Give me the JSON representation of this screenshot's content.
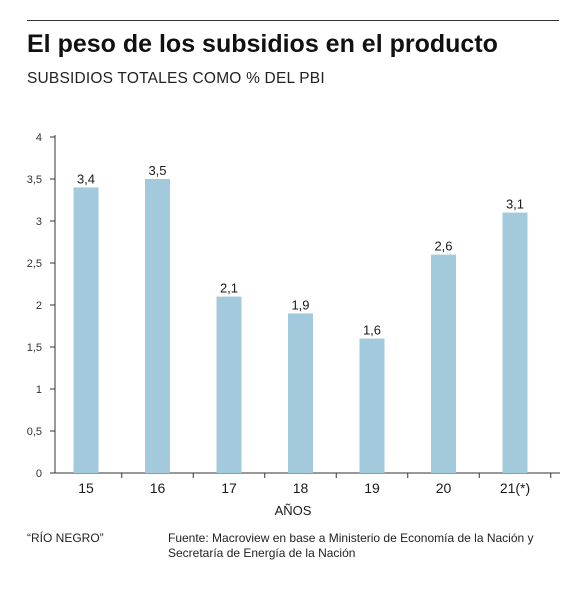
{
  "header": {
    "title": "El peso de los subsidios en el producto",
    "subtitle": "SUBSIDIOS TOTALES COMO % DEL PBI"
  },
  "footer": {
    "publication": "“RÍO NEGRO”",
    "source_line1": "Fuente: Macroview en base a Ministerio de Economía de la Nación y",
    "source_line2": "Secretaría de Energía de la Nación"
  },
  "colors": {
    "bar": "#a3c9dd",
    "axis": "#333333",
    "text": "#1a1a1a"
  },
  "chart_data": {
    "type": "bar",
    "title": "",
    "xlabel": "AÑOS",
    "ylabel": "",
    "categories": [
      "15",
      "16",
      "17",
      "18",
      "19",
      "20",
      "21(*)"
    ],
    "values": [
      3.4,
      3.5,
      2.1,
      1.9,
      1.6,
      2.6,
      3.1
    ],
    "value_labels": [
      "3,4",
      "3,5",
      "2,1",
      "1,9",
      "1,6",
      "2,6",
      "3,1"
    ],
    "ylim": [
      0,
      4
    ],
    "yticks": [
      0,
      0.5,
      1,
      1.5,
      2,
      2.5,
      3,
      3.5,
      4
    ],
    "ytick_labels": [
      "0",
      "0,5",
      "1",
      "1,5",
      "2",
      "2,5",
      "3",
      "3,5",
      "4"
    ],
    "grid": false,
    "legend": "none"
  }
}
